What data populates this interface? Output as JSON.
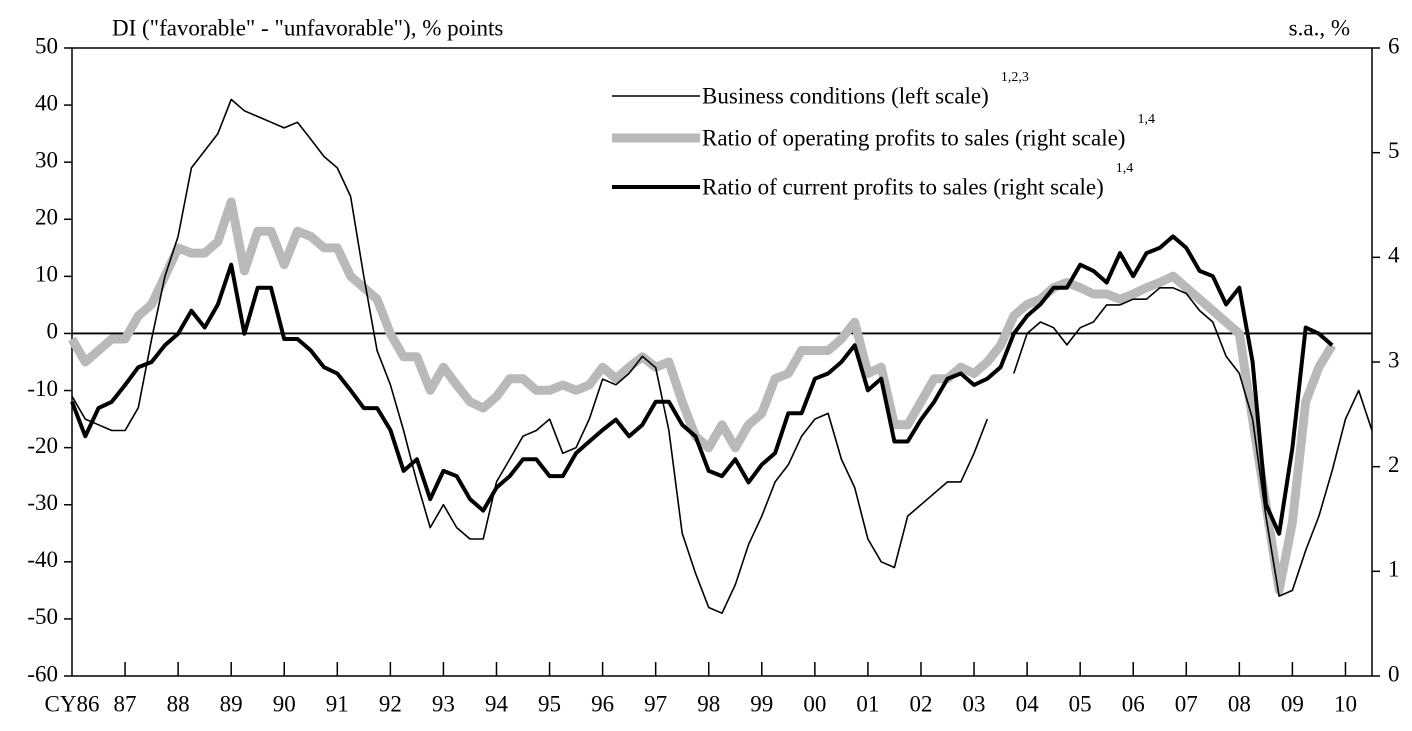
{
  "chart_data": {
    "type": "line",
    "ylabel": "DI (\"favorable\" - \"unfavorable\"), % points",
    "y2label": "s.a., %",
    "categories": [
      "CY86",
      null,
      null,
      null,
      "87",
      null,
      null,
      null,
      "88",
      null,
      null,
      null,
      "89",
      null,
      null,
      null,
      "90",
      null,
      null,
      null,
      "91",
      null,
      null,
      null,
      "92",
      null,
      null,
      null,
      "93",
      null,
      null,
      null,
      "94",
      null,
      null,
      null,
      "95",
      null,
      null,
      null,
      "96",
      null,
      null,
      null,
      "97",
      null,
      null,
      null,
      "98",
      null,
      null,
      null,
      "99",
      null,
      null,
      null,
      "00",
      null,
      null,
      null,
      "01",
      null,
      null,
      null,
      "02",
      null,
      null,
      null,
      "03",
      null,
      null,
      null,
      "04",
      null,
      null,
      null,
      "05",
      null,
      null,
      null,
      "06",
      null,
      null,
      null,
      "07",
      null,
      null,
      null,
      "08",
      null,
      null,
      null,
      "09",
      null,
      null,
      null,
      "10",
      null,
      null
    ],
    "ylim": [
      -60,
      50
    ],
    "yticks": [
      50,
      40,
      30,
      20,
      10,
      0,
      -10,
      -20,
      -30,
      -40,
      -50,
      -60
    ],
    "y2lim": [
      0,
      6
    ],
    "y2ticks": [
      0,
      1,
      2,
      3,
      4,
      5,
      6
    ],
    "reference_line": 0,
    "series": [
      {
        "name": "Business conditions (left scale)",
        "notes": "1,2,3",
        "color": "#000000",
        "width": 1.6,
        "axis": "y",
        "values": [
          -11,
          -15,
          -16,
          -17,
          -17,
          -13,
          -1,
          10,
          17,
          29,
          32,
          35,
          41,
          39,
          38,
          37,
          36,
          37,
          34,
          31,
          29,
          24,
          10,
          -3,
          -9,
          -17,
          -26,
          -34,
          -30,
          -34,
          -36,
          -36,
          -26,
          -22,
          -18,
          -17,
          -15,
          -21,
          -20,
          -15,
          -8,
          -9,
          -7,
          -4,
          -6,
          -17,
          -35,
          -42,
          -48,
          -49,
          -44,
          -37,
          -32,
          -26,
          -23,
          -18,
          -15,
          -14,
          -22,
          -27,
          -36,
          -40,
          -41,
          -32,
          -30,
          -28,
          -26,
          -26,
          -21,
          -15,
          null,
          -7,
          0,
          2,
          1,
          -2,
          1,
          2,
          5,
          5,
          6,
          6,
          8,
          8,
          7,
          4,
          2,
          -4,
          -7,
          -15,
          -32,
          -46,
          -45,
          -38,
          -32,
          -24,
          -15,
          -10,
          -17
        ]
      },
      {
        "name": "Ratio of operating profits to sales (right scale)",
        "notes": "1,4",
        "color": "#b9b9b9",
        "width": 9,
        "axis": "y2",
        "values": [
          3.22,
          3.0,
          3.11,
          3.22,
          3.22,
          3.44,
          3.55,
          3.82,
          4.09,
          4.04,
          4.04,
          4.15,
          4.53,
          3.87,
          4.25,
          4.25,
          3.93,
          4.25,
          4.2,
          4.09,
          4.09,
          3.82,
          3.71,
          3.6,
          3.27,
          3.05,
          3.05,
          2.73,
          2.95,
          2.78,
          2.62,
          2.56,
          2.67,
          2.84,
          2.84,
          2.73,
          2.73,
          2.78,
          2.73,
          2.78,
          2.95,
          2.84,
          2.95,
          3.05,
          2.95,
          3.0,
          2.62,
          2.29,
          2.18,
          2.4,
          2.18,
          2.4,
          2.51,
          2.84,
          2.89,
          3.11,
          3.11,
          3.11,
          3.22,
          3.38,
          2.89,
          2.95,
          2.4,
          2.4,
          2.62,
          2.84,
          2.84,
          2.95,
          2.89,
          3.0,
          3.16,
          3.44,
          3.55,
          3.6,
          3.71,
          3.76,
          3.71,
          3.65,
          3.65,
          3.6,
          3.65,
          3.71,
          3.76,
          3.82,
          3.71,
          3.6,
          3.49,
          3.38,
          3.27,
          2.45,
          1.64,
          0.82,
          1.47,
          2.62,
          2.95,
          3.16,
          null,
          null,
          null
        ]
      },
      {
        "name": "Ratio of current profits to sales (right scale)",
        "notes": "1,4",
        "color": "#000000",
        "width": 4,
        "axis": "y2",
        "values": [
          2.62,
          2.29,
          2.56,
          2.62,
          2.78,
          2.95,
          3.0,
          3.16,
          3.27,
          3.49,
          3.33,
          3.55,
          3.93,
          3.27,
          3.71,
          3.71,
          3.22,
          3.22,
          3.11,
          2.95,
          2.89,
          2.73,
          2.56,
          2.56,
          2.35,
          1.96,
          2.07,
          1.69,
          1.96,
          1.91,
          1.69,
          1.58,
          1.8,
          1.91,
          2.07,
          2.07,
          1.91,
          1.91,
          2.13,
          2.24,
          2.35,
          2.45,
          2.29,
          2.4,
          2.62,
          2.62,
          2.4,
          2.29,
          1.96,
          1.91,
          2.07,
          1.85,
          2.02,
          2.13,
          2.51,
          2.51,
          2.84,
          2.89,
          3.0,
          3.16,
          2.73,
          2.84,
          2.24,
          2.24,
          2.45,
          2.62,
          2.84,
          2.89,
          2.78,
          2.84,
          2.95,
          3.27,
          3.44,
          3.55,
          3.71,
          3.71,
          3.93,
          3.87,
          3.76,
          4.04,
          3.82,
          4.04,
          4.09,
          4.2,
          4.09,
          3.87,
          3.82,
          3.55,
          3.71,
          3.0,
          1.64,
          1.36,
          2.18,
          3.33,
          3.27,
          3.16,
          null,
          null,
          null
        ]
      }
    ]
  }
}
